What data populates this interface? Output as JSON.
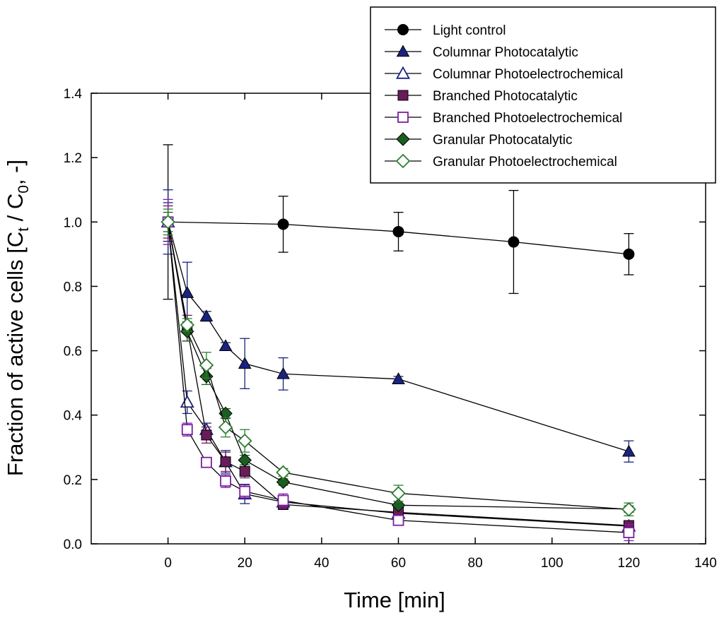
{
  "chart_data": {
    "type": "line",
    "title": "",
    "xlabel": "Time [min]",
    "ylabel": {
      "prefix": "Fraction of active cells [C",
      "sub1": "t",
      "mid": " / C",
      "sub2": "0",
      "suffix": ", -]"
    },
    "xlim": [
      -20,
      140
    ],
    "ylim": [
      0,
      1.4
    ],
    "xticks": [
      0,
      20,
      40,
      60,
      80,
      100,
      120,
      140
    ],
    "yticks": [
      0.0,
      0.2,
      0.4,
      0.6,
      0.8,
      1.0,
      1.2,
      1.4
    ],
    "ytick_labels": [
      "0.0",
      "0.2",
      "0.4",
      "0.6",
      "0.8",
      "1.0",
      "1.2",
      "1.4"
    ],
    "legend_position": "top-right",
    "series": [
      {
        "name": "Light control",
        "marker": "circle",
        "filled": true,
        "color": "#000000",
        "points": [
          [
            0,
            1.0,
            0.24
          ],
          [
            30,
            0.993,
            0.087
          ],
          [
            60,
            0.97,
            0.06
          ],
          [
            90,
            0.938,
            0.16
          ],
          [
            120,
            0.9,
            0.064
          ]
        ]
      },
      {
        "name": "Columnar Photocatalytic",
        "marker": "triangle",
        "filled": true,
        "color": "#1a237e",
        "points": [
          [
            0,
            1.0,
            0.1
          ],
          [
            5,
            0.78,
            0.095
          ],
          [
            10,
            0.707,
            0.015
          ],
          [
            15,
            0.615,
            0.01
          ],
          [
            20,
            0.56,
            0.078
          ],
          [
            30,
            0.528,
            0.05
          ],
          [
            60,
            0.512,
            0.008
          ],
          [
            120,
            0.287,
            0.033
          ]
        ]
      },
      {
        "name": "Columnar Photoelectrochemical",
        "marker": "triangle",
        "filled": false,
        "color": "#1a237e",
        "points": [
          [
            0,
            1.0,
            0.06
          ],
          [
            5,
            0.44,
            0.035
          ],
          [
            10,
            0.355,
            0.02
          ],
          [
            15,
            0.255,
            0.035
          ],
          [
            20,
            0.155,
            0.03
          ],
          [
            30,
            0.13,
            0.02
          ],
          [
            60,
            0.095,
            0.01
          ],
          [
            120,
            0.055,
            0.01
          ]
        ]
      },
      {
        "name": "Branched Photocatalytic",
        "marker": "square",
        "filled": true,
        "color": "#6a1b5a",
        "points": [
          [
            0,
            1.0,
            0.05
          ],
          [
            5,
            0.67,
            0.04
          ],
          [
            10,
            0.338,
            0.025
          ],
          [
            15,
            0.255,
            0.03
          ],
          [
            20,
            0.225,
            0.02
          ],
          [
            30,
            0.122,
            0.015
          ],
          [
            60,
            0.098,
            0.01
          ],
          [
            120,
            0.057,
            0.01
          ]
        ]
      },
      {
        "name": "Branched Photoelectrochemical",
        "marker": "square",
        "filled": false,
        "color": "#7b1fa2",
        "points": [
          [
            0,
            1.0,
            0.07
          ],
          [
            5,
            0.355,
            0.02
          ],
          [
            10,
            0.253,
            0.012
          ],
          [
            15,
            0.195,
            0.02
          ],
          [
            20,
            0.163,
            0.02
          ],
          [
            30,
            0.135,
            0.02
          ],
          [
            60,
            0.073,
            0.01
          ],
          [
            120,
            0.035,
            0.025
          ]
        ]
      },
      {
        "name": "Granular Photocatalytic",
        "marker": "diamond",
        "filled": true,
        "color": "#1b5e20",
        "points": [
          [
            0,
            1.0,
            0.03
          ],
          [
            5,
            0.66,
            0.03
          ],
          [
            10,
            0.52,
            0.025
          ],
          [
            15,
            0.405,
            0.015
          ],
          [
            20,
            0.26,
            0.015
          ],
          [
            30,
            0.192,
            0.01
          ],
          [
            60,
            0.12,
            0.012
          ],
          [
            120,
            0.108,
            0.01
          ]
        ]
      },
      {
        "name": "Granular Photoelectrochemical",
        "marker": "diamond",
        "filled": false,
        "color": "#2e7d32",
        "points": [
          [
            0,
            1.0,
            0.04
          ],
          [
            5,
            0.68,
            0.02
          ],
          [
            10,
            0.555,
            0.04
          ],
          [
            15,
            0.362,
            0.03
          ],
          [
            20,
            0.32,
            0.035
          ],
          [
            30,
            0.222,
            0.012
          ],
          [
            60,
            0.157,
            0.025
          ],
          [
            120,
            0.107,
            0.02
          ]
        ]
      }
    ]
  }
}
